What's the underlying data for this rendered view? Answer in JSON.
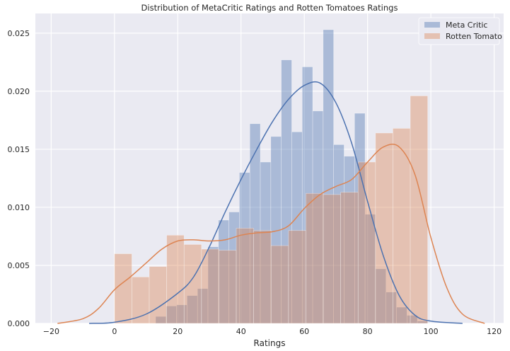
{
  "chart_data": {
    "type": "histogram",
    "title": "Distribution of MetaCritic Ratings and Rotten Tomatoes Ratings",
    "xlabel": "Ratings",
    "ylabel": "",
    "xlim": [
      -25,
      123
    ],
    "ylim": [
      0,
      0.0267
    ],
    "xticks": [
      "−20",
      "0",
      "20",
      "40",
      "60",
      "80",
      "100",
      "120"
    ],
    "yticks": [
      "0.000",
      "0.005",
      "0.010",
      "0.015",
      "0.020",
      "0.025"
    ],
    "grid": true,
    "legend_position": "top-right",
    "series": [
      {
        "name": "Meta Critic",
        "color": "#4c72b0",
        "bin_edges": [
          13,
          16.31,
          19.62,
          22.93,
          26.24,
          29.55,
          32.86,
          36.17,
          39.48,
          42.79,
          46.1,
          49.41,
          52.72,
          56.03,
          59.34,
          62.65,
          65.96,
          69.27,
          72.58,
          75.89,
          79.2,
          82.51,
          85.82,
          89.13,
          92.44,
          95.75,
          99
        ],
        "values": [
          0.0006,
          0.0015,
          0.0016,
          0.0024,
          0.003,
          0.0066,
          0.0089,
          0.0096,
          0.013,
          0.0172,
          0.0139,
          0.0161,
          0.0227,
          0.0165,
          0.0221,
          0.0183,
          0.0253,
          0.0154,
          0.0144,
          0.0181,
          0.0094,
          0.0047,
          0.0027,
          0.0014,
          0.0007,
          0.0002
        ],
        "kde": [
          [
            -8,
            0.0
          ],
          [
            0,
            0.0001
          ],
          [
            10,
            0.0008
          ],
          [
            20,
            0.0026
          ],
          [
            25,
            0.004
          ],
          [
            30,
            0.0066
          ],
          [
            35,
            0.0096
          ],
          [
            40,
            0.0124
          ],
          [
            45,
            0.015
          ],
          [
            50,
            0.0174
          ],
          [
            55,
            0.0193
          ],
          [
            60,
            0.0205
          ],
          [
            65,
            0.0207
          ],
          [
            70,
            0.019
          ],
          [
            75,
            0.0155
          ],
          [
            80,
            0.0105
          ],
          [
            85,
            0.0058
          ],
          [
            90,
            0.0024
          ],
          [
            95,
            0.0007
          ],
          [
            100,
            0.0002
          ],
          [
            110,
            0.0
          ]
        ]
      },
      {
        "name": "Rotten Tomato",
        "color": "#dd8452",
        "bin_edges": [
          0,
          5.5,
          11,
          16.5,
          22,
          27.5,
          33,
          38.5,
          44,
          49.5,
          55,
          60.5,
          66,
          71.5,
          77,
          82.5,
          88,
          93.5,
          99
        ],
        "values": [
          0.006,
          0.004,
          0.0049,
          0.0076,
          0.0068,
          0.0064,
          0.0063,
          0.0082,
          0.008,
          0.0067,
          0.008,
          0.0112,
          0.0111,
          0.0113,
          0.0139,
          0.0164,
          0.0168,
          0.0196
        ],
        "kde": [
          [
            -18,
            0.0
          ],
          [
            -10,
            0.0004
          ],
          [
            -5,
            0.0013
          ],
          [
            0,
            0.0029
          ],
          [
            5,
            0.004
          ],
          [
            10,
            0.0052
          ],
          [
            15,
            0.0064
          ],
          [
            20,
            0.0071
          ],
          [
            25,
            0.0072
          ],
          [
            30,
            0.0071
          ],
          [
            35,
            0.0072
          ],
          [
            40,
            0.0076
          ],
          [
            45,
            0.0078
          ],
          [
            50,
            0.0079
          ],
          [
            55,
            0.0084
          ],
          [
            60,
            0.0099
          ],
          [
            65,
            0.0111
          ],
          [
            70,
            0.0118
          ],
          [
            75,
            0.0124
          ],
          [
            80,
            0.0139
          ],
          [
            85,
            0.0152
          ],
          [
            90,
            0.0152
          ],
          [
            95,
            0.0128
          ],
          [
            100,
            0.0074
          ],
          [
            105,
            0.0031
          ],
          [
            110,
            0.0008
          ],
          [
            117,
            0.0
          ]
        ]
      }
    ]
  }
}
